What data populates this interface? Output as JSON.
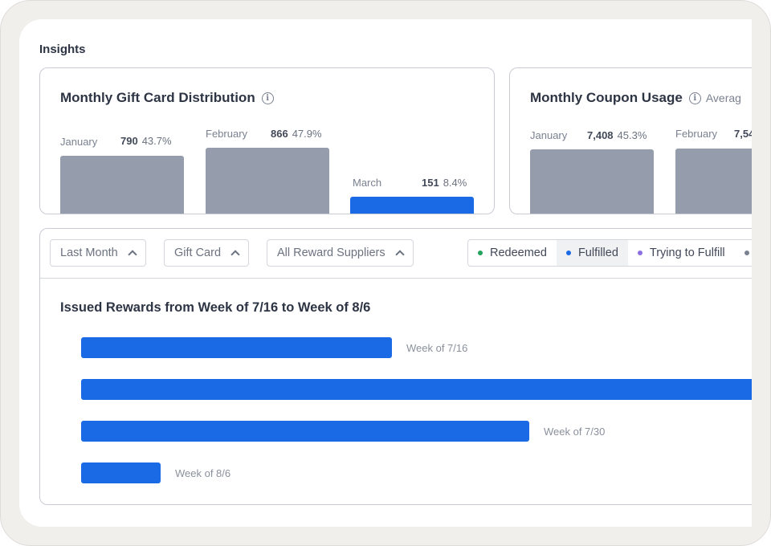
{
  "section_title": "Insights",
  "gift_card_card": {
    "title": "Monthly Gift Card Distribution",
    "info_icon": "info-icon",
    "months": [
      {
        "label": "January",
        "value": "790",
        "percent": "43.7%",
        "highlight": false
      },
      {
        "label": "February",
        "value": "866",
        "percent": "47.9%",
        "highlight": false
      },
      {
        "label": "March",
        "value": "151",
        "percent": "8.4%",
        "highlight": true
      }
    ]
  },
  "coupon_card": {
    "title": "Monthly Coupon Usage",
    "info_icon": "info-icon",
    "subtitle_partial": "Averag",
    "months": [
      {
        "label": "January",
        "value": "7,408",
        "percent": "45.3%"
      },
      {
        "label": "February",
        "value": "7,54",
        "percent": ""
      }
    ]
  },
  "filters": [
    {
      "label": "Last Month",
      "icon": "chevron-up-icon"
    },
    {
      "label": "Gift Card",
      "icon": "chevron-up-icon"
    },
    {
      "label": "All Reward Suppliers",
      "icon": "chevron-up-icon"
    }
  ],
  "legend": [
    {
      "label": "Redeemed",
      "color": "#22a45d",
      "selected": false
    },
    {
      "label": "Fulfilled",
      "color": "#1a6ae6",
      "selected": true
    },
    {
      "label": "Trying to Fulfill",
      "color": "#8b6fe0",
      "selected": false
    },
    {
      "label": "",
      "color": "#7a8190",
      "selected": false
    }
  ],
  "chart_data": {
    "type": "bar",
    "orientation": "horizontal",
    "title": "Issued Rewards from Week of 7/16 to Week of 8/6",
    "categories": [
      "Week of 7/16",
      "",
      "Week of 7/30",
      "Week of 8/6"
    ],
    "values": [
      43,
      100,
      62,
      11
    ],
    "color": "#1a6ae6"
  }
}
